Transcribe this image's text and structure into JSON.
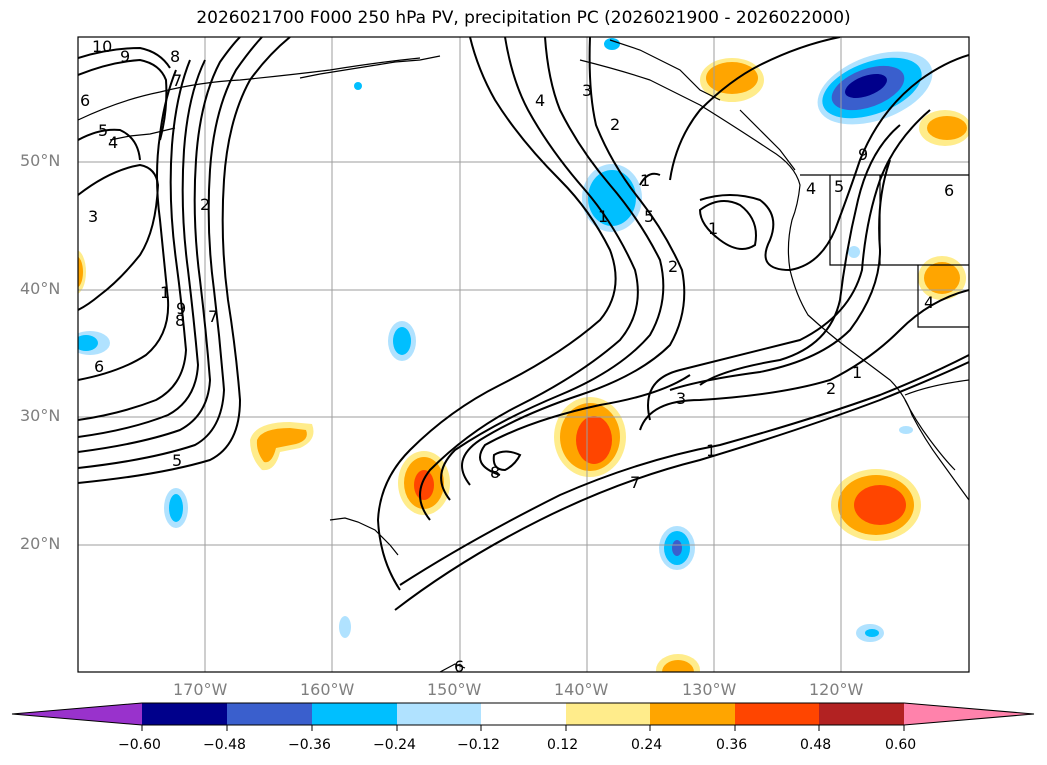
{
  "title": "2026021700 F000 250 hPa PV, precipitation PC (2026021900 - 2026022000)",
  "lat_labels": [
    "50°N",
    "40°N",
    "30°N",
    "20°N"
  ],
  "lon_labels": [
    "170°W",
    "160°W",
    "150°W",
    "140°W",
    "130°W",
    "120°W"
  ],
  "colorbar": {
    "ticks": [
      "−0.60",
      "−0.48",
      "−0.36",
      "−0.24",
      "−0.12",
      "0.12",
      "0.24",
      "0.36",
      "0.48",
      "0.60"
    ],
    "colors": [
      "#9932cc",
      "#00008b",
      "#3a5fcd",
      "#00bfff",
      "#b0e2ff",
      "#ffffff",
      "#ffec8b",
      "#ffa500",
      "#ff4500",
      "#b22222",
      "#ff82ab"
    ]
  },
  "contour_labels": [
    "10",
    "9",
    "8",
    "7",
    "6",
    "5",
    "4",
    "3",
    "2",
    "1",
    "9",
    "8",
    "7",
    "6",
    "5",
    "4",
    "3",
    "2",
    "1",
    "5",
    "2",
    "1",
    "9",
    "6",
    "4",
    "1",
    "8",
    "1",
    "7",
    "6",
    "4",
    "5",
    "3",
    "2",
    "1"
  ]
}
